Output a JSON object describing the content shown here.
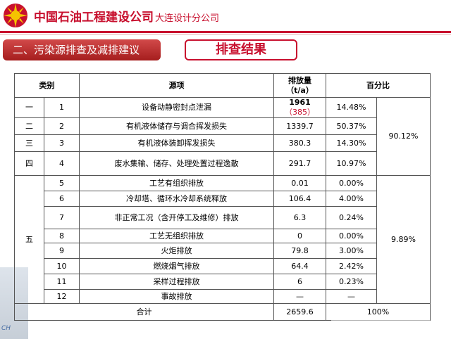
{
  "header": {
    "company_main": "中国石油工程建设公司",
    "company_sub": "大连设计分公司"
  },
  "section_label": "二、污染源排查及减排建议",
  "page_title": "排查结果",
  "table": {
    "col_category": "类别",
    "col_source": "源项",
    "col_emission_line1": "排放量",
    "col_emission_line2": "（t/a）",
    "col_percent": "百分比",
    "rows": [
      {
        "cat": "一",
        "no": "1",
        "source": "设备动静密封点泄漏",
        "em_main": "1961",
        "em_paren": "（385）",
        "pct": "14.48%",
        "red": true
      },
      {
        "cat": "二",
        "no": "2",
        "source": "有机液体储存与调合挥发损失",
        "em": "1339.7",
        "pct": "50.37%",
        "red": true
      },
      {
        "cat": "三",
        "no": "3",
        "source": "有机液体装卸挥发损失",
        "em": "380.3",
        "pct": "14.30%",
        "red": true
      },
      {
        "cat": "四",
        "no": "4",
        "source": "废水集输、储存、处理处置过程逸散",
        "em": "291.7",
        "pct": "10.97%",
        "red": true
      },
      {
        "cat": "五",
        "no": "5",
        "source": "工艺有组织排放",
        "em": "0.01",
        "pct": "0.00%",
        "red": false
      },
      {
        "no": "6",
        "source": "冷却塔、循环水冷却系统释放",
        "em": "106.4",
        "pct": "4.00%",
        "red": false
      },
      {
        "no": "7",
        "source": "非正常工况（含开停工及维修）排放",
        "em": "6.3",
        "pct": "0.24%",
        "red": true
      },
      {
        "no": "8",
        "source": "工艺无组织排放",
        "em": "0",
        "pct": "0.00%",
        "red": false
      },
      {
        "no": "9",
        "source": "火炬排放",
        "em": "79.8",
        "pct": "3.00%",
        "red": false
      },
      {
        "no": "10",
        "source": "燃烧烟气排放",
        "em": "64.4",
        "pct": "2.42%",
        "red": false
      },
      {
        "no": "11",
        "source": "采样过程排放",
        "em": "6",
        "pct": "0.23%",
        "red": false
      },
      {
        "no": "12",
        "source": "事故排放",
        "em": "—",
        "pct": "—",
        "red": false
      }
    ],
    "group1_total": "90.12%",
    "group2_total": "9.89%",
    "total_label": "合计",
    "total_em": "2659.6",
    "total_pct": "100%"
  },
  "footer": {
    "left_mark": "CH"
  },
  "colors": {
    "brand_red": "#c8102e"
  }
}
